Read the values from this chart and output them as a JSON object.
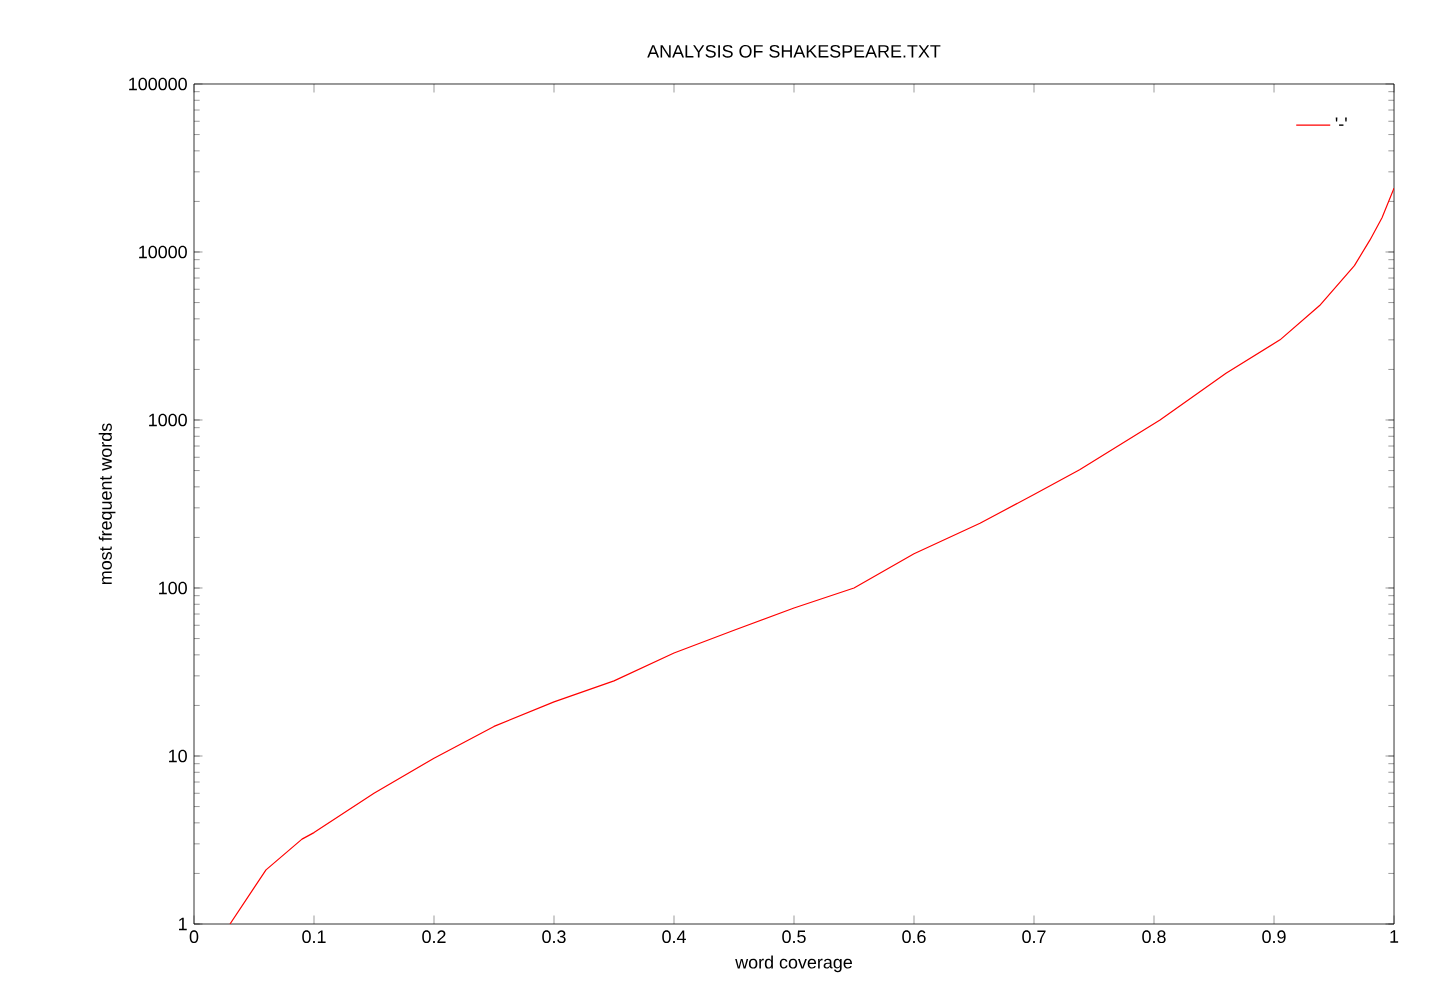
{
  "chart_data": {
    "type": "line",
    "title": "ANALYSIS OF SHAKESPEARE.TXT",
    "xlabel": "word coverage",
    "ylabel": "most frequent words",
    "log": "y",
    "xlim": [
      0,
      1
    ],
    "ylim": [
      1,
      100000
    ],
    "xticks": [
      0,
      0.1,
      0.2,
      0.3,
      0.4,
      0.5,
      0.6,
      0.7,
      0.8,
      0.9,
      1
    ],
    "yticks": [
      1,
      10,
      100,
      1000,
      10000,
      100000
    ],
    "legend": "top right",
    "marker": "none",
    "line_style": "solid",
    "grid": false,
    "series": [
      {
        "name": "'-'",
        "color": "#ff0000",
        "x": [
          0.03,
          0.06,
          0.09,
          0.1,
          0.15,
          0.2,
          0.25,
          0.3,
          0.35,
          0.4,
          0.45,
          0.5,
          0.55,
          0.6,
          0.655,
          0.7,
          0.738,
          0.805,
          0.86,
          0.905,
          0.938,
          0.967,
          0.98,
          0.99,
          1
        ],
        "values": [
          1,
          2.1,
          3.2,
          3.5,
          6,
          9.7,
          15,
          21,
          28,
          41,
          56,
          76,
          100,
          160,
          243,
          360,
          505,
          1000,
          1900,
          3000,
          4800,
          8300,
          11800,
          16000,
          24000
        ]
      }
    ]
  }
}
